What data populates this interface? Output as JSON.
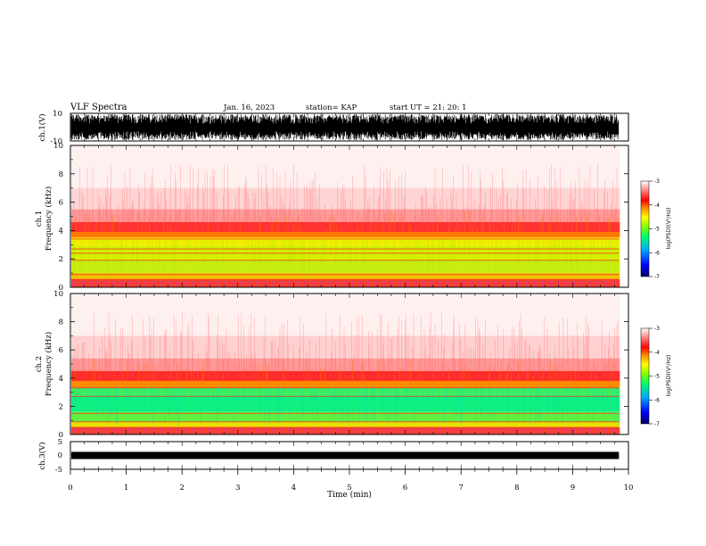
{
  "header": {
    "title": "VLF Spectra",
    "date": "Jan. 16, 2023",
    "station": "station= KAP",
    "start": "start  UT  =   21: 20: 1"
  },
  "colors": {
    "waveform": "#000000",
    "colormap": [
      "#000070",
      "#0000ff",
      "#00b0ff",
      "#00ff60",
      "#80ff00",
      "#ffff00",
      "#ff8000",
      "#ff0000",
      "#ff9090",
      "#ffffff"
    ]
  },
  "chart_data": [
    {
      "type": "line",
      "panel": "ch1-waveform",
      "ylabel": "ch.1(V)",
      "ylim": [
        -10,
        10
      ],
      "y_ticks": [
        "10",
        "-10"
      ],
      "x_range": [
        0,
        10
      ],
      "note_x_extent": [
        0,
        9.83
      ]
    },
    {
      "type": "heatmap",
      "panel": "ch1-spectrogram",
      "ylabel_top": "ch.1",
      "ylabel": "Frequency (kHz)",
      "ylim": [
        0,
        10
      ],
      "y_ticks": [
        "0",
        "2",
        "4",
        "6",
        "8",
        "10"
      ],
      "x_range": [
        0,
        10
      ],
      "data_x_extent": [
        0,
        9.83
      ],
      "colorbar": {
        "label": "log(PSD)(V²/Hz)",
        "range": [
          -7,
          -3
        ],
        "ticks": [
          "-3",
          "-4",
          "-5",
          "-6",
          "-7"
        ]
      }
    },
    {
      "type": "heatmap",
      "panel": "ch2-spectrogram",
      "ylabel_top": "ch.2",
      "ylabel": "Frequency (kHz)",
      "ylim": [
        0,
        10
      ],
      "y_ticks": [
        "0",
        "2",
        "4",
        "6",
        "8",
        "10"
      ],
      "x_range": [
        0,
        10
      ],
      "data_x_extent": [
        0,
        9.83
      ],
      "colorbar": {
        "label": "log(PSD)(V²/Hz)",
        "range": [
          -7,
          -3
        ],
        "ticks": [
          "-3",
          "-4",
          "-5",
          "-6",
          "-7"
        ]
      }
    },
    {
      "type": "line",
      "panel": "ch3-waveform",
      "ylabel": "ch.3(V)",
      "ylim": [
        -5,
        5
      ],
      "y_ticks": [
        "5",
        "0",
        "-5"
      ],
      "x_range": [
        0,
        10
      ],
      "xlabel": "Time (min)",
      "x_ticks": [
        "0",
        "1",
        "2",
        "3",
        "4",
        "5",
        "6",
        "7",
        "8",
        "9",
        "10"
      ]
    }
  ]
}
